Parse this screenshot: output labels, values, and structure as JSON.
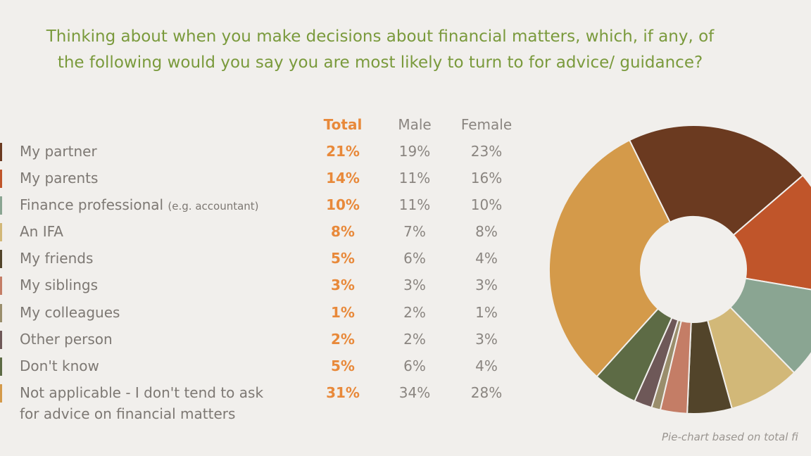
{
  "title_line1": "Thinking about when you make decisions about financial matters, which, if any, of",
  "title_line2": "the following would you say you are most likely to turn to for advice/ guidance?",
  "headers": {
    "total": "Total",
    "male": "Male",
    "female": "Female"
  },
  "rows": [
    {
      "label": "My partner",
      "sub": "",
      "total": "21%",
      "male": "19%",
      "female": "23%",
      "color": "#6b3a20"
    },
    {
      "label": "My parents",
      "sub": "",
      "total": "14%",
      "male": "11%",
      "female": "16%",
      "color": "#c0552a"
    },
    {
      "label": "Finance professional",
      "sub": "(e.g. accountant)",
      "total": "10%",
      "male": "11%",
      "female": "10%",
      "color": "#8aa592"
    },
    {
      "label": "An IFA",
      "sub": "",
      "total": "8%",
      "male": "7%",
      "female": "8%",
      "color": "#d2b878"
    },
    {
      "label": "My friends",
      "sub": "",
      "total": "5%",
      "male": "6%",
      "female": "4%",
      "color": "#52442a"
    },
    {
      "label": "My siblings",
      "sub": "",
      "total": "3%",
      "male": "3%",
      "female": "3%",
      "color": "#c47d66"
    },
    {
      "label": "My colleagues",
      "sub": "",
      "total": "1%",
      "male": "2%",
      "female": "1%",
      "color": "#9a8e6c"
    },
    {
      "label": "Other person",
      "sub": "",
      "total": "2%",
      "male": "2%",
      "female": "3%",
      "color": "#6e5858"
    },
    {
      "label": "Don't know",
      "sub": "",
      "total": "5%",
      "male": "6%",
      "female": "4%",
      "color": "#5d6b45"
    },
    {
      "label": "Not applicable - I don't tend to ask",
      "label2": "for advice on financial matters",
      "sub": "",
      "total": "31%",
      "male": "34%",
      "female": "28%",
      "color": "#d49a4a"
    }
  ],
  "note": "Pie-chart based on total fi",
  "chart_data": {
    "type": "pie",
    "style": "donut",
    "categories": [
      "My partner",
      "My parents",
      "Finance professional",
      "An IFA",
      "My friends",
      "My siblings",
      "My colleagues",
      "Other person",
      "Don't know",
      "Not applicable"
    ],
    "values": [
      21,
      14,
      10,
      8,
      5,
      3,
      1,
      2,
      5,
      31
    ],
    "colors": [
      "#6b3a20",
      "#c0552a",
      "#8aa592",
      "#d2b878",
      "#52442a",
      "#c47d66",
      "#9a8e6c",
      "#6e5858",
      "#5d6b45",
      "#d49a4a"
    ]
  }
}
